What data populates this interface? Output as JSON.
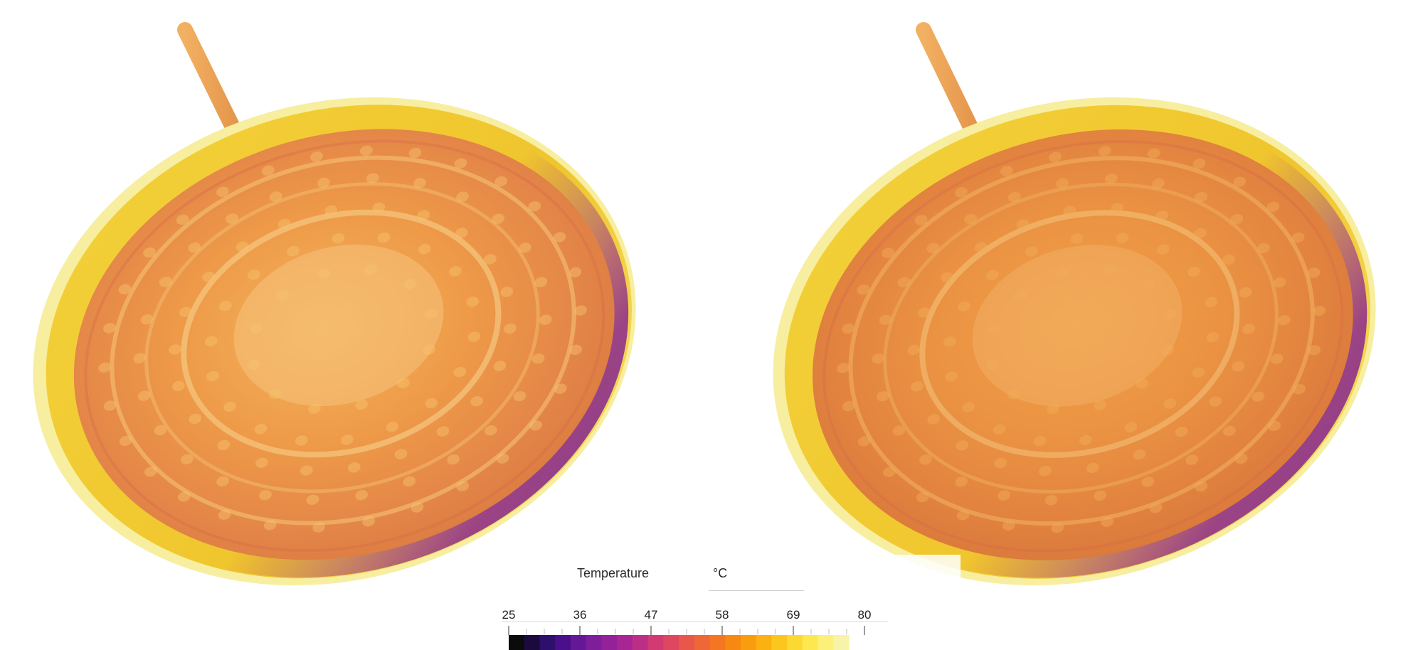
{
  "legend": {
    "title": "Temperature",
    "unit": "°C",
    "min": 25,
    "max": 80,
    "tick_labels": [
      "25",
      "36",
      "47",
      "58",
      "69",
      "80"
    ],
    "colormap": "plasma-like (black-purple-magenta-orange-yellow)",
    "colors": [
      "#0b0b0b",
      "#1a0a3e",
      "#2e0f6b",
      "#4a0f8a",
      "#651896",
      "#7e1e9b",
      "#94219a",
      "#a82693",
      "#bc2f86",
      "#d23a73",
      "#df4760",
      "#e9564b",
      "#ef6637",
      "#f47622",
      "#f78812",
      "#f99c0d",
      "#fbb112",
      "#fcc61f",
      "#fcd932",
      "#fde84f",
      "#fdf07a",
      "#f7f3a8"
    ]
  },
  "views": [
    {
      "name": "left-view"
    },
    {
      "name": "right-view"
    }
  ]
}
